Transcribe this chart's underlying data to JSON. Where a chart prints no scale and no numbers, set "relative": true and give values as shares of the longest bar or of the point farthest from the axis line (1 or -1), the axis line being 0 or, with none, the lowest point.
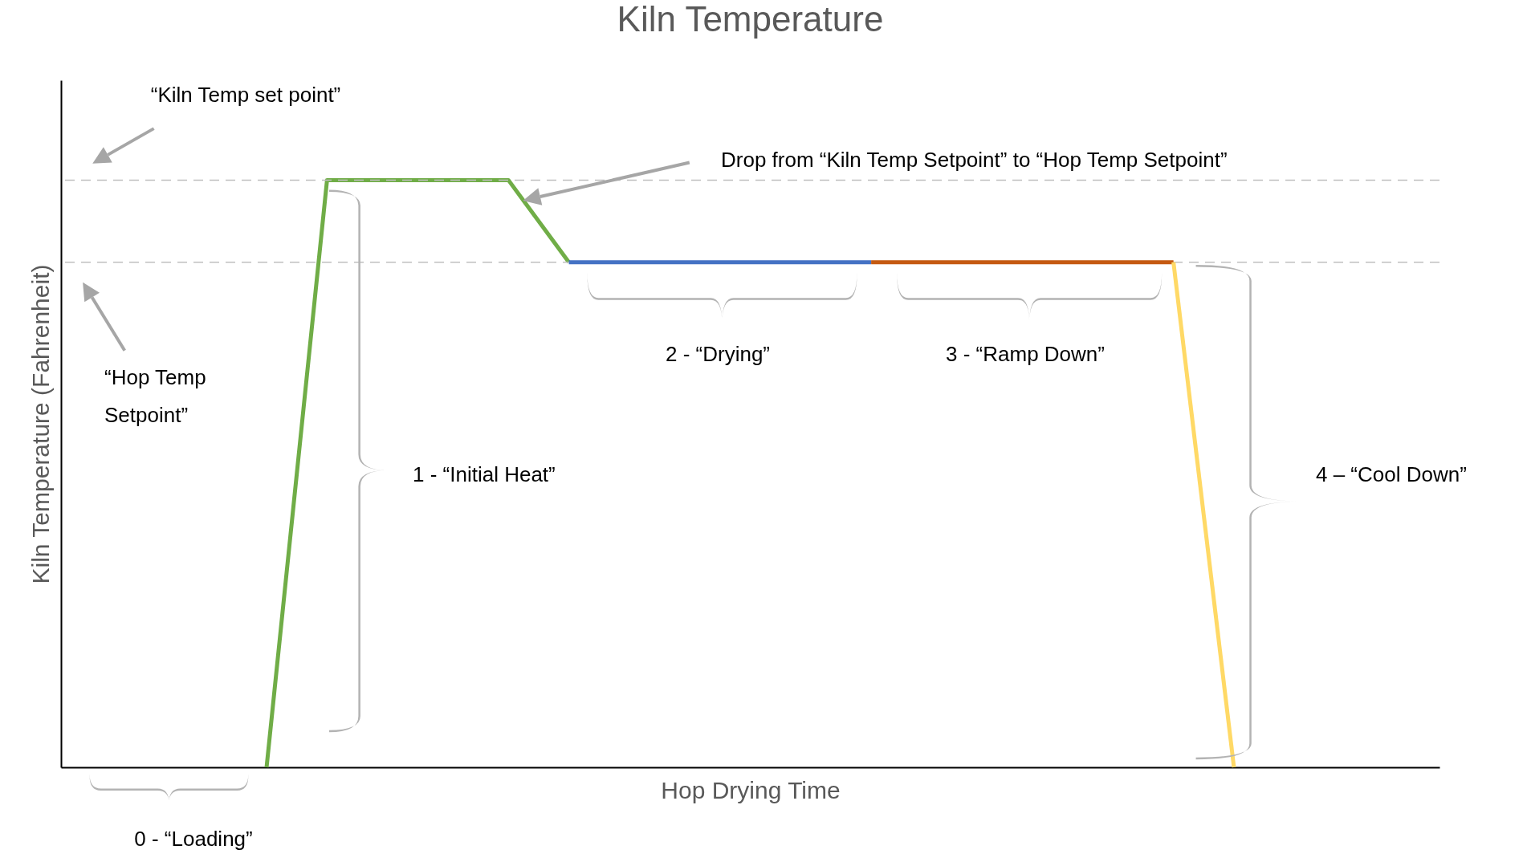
{
  "chart_data": {
    "type": "line",
    "title": "Kiln Temperature",
    "xlabel": "Hop Drying Time",
    "ylabel": "Kiln Temperature (Fahrenheit)",
    "relative": true,
    "categories": [
      null,
      null,
      null,
      null,
      null,
      null,
      null,
      null,
      null,
      null,
      null,
      null,
      null,
      null,
      null,
      null,
      null,
      null,
      null,
      null,
      null,
      null,
      null
    ],
    "series": [
      {
        "color": "#70ad47",
        "values": [
          null,
          null,
          null,
          0,
          1,
          1,
          1,
          1,
          0.86,
          null,
          null,
          null,
          null,
          null,
          null,
          null,
          null,
          null,
          null,
          null,
          null,
          null,
          null
        ]
      },
      {
        "color": "#4472c4",
        "values": [
          null,
          null,
          null,
          null,
          null,
          null,
          null,
          null,
          0.86,
          0.86,
          0.86,
          0.86,
          0.86,
          0.86,
          null,
          null,
          null,
          null,
          null,
          null,
          null,
          null,
          null
        ]
      },
      {
        "color": "#c55a11",
        "values": [
          null,
          null,
          null,
          null,
          null,
          null,
          null,
          null,
          null,
          null,
          null,
          null,
          null,
          0.86,
          0.86,
          0.86,
          0.86,
          0.86,
          0.86,
          null,
          null,
          null,
          null
        ]
      },
      {
        "color": "#ffd966",
        "values": [
          null,
          null,
          null,
          null,
          null,
          null,
          null,
          null,
          null,
          null,
          null,
          null,
          null,
          null,
          null,
          null,
          null,
          null,
          0.86,
          0,
          null,
          null,
          null
        ]
      }
    ],
    "ref_lines": [
      {
        "axis": "y",
        "value": 1,
        "color": "#bfbfbf",
        "line_style": "dashed"
      },
      {
        "axis": "y",
        "value": 0.86,
        "color": "#bfbfbf",
        "line_style": "dashed"
      }
    ],
    "annotations": [
      "“Kiln Temp set point”",
      "“Hop Temp Setpoint”",
      "Drop from “Kiln Temp Setpoint” to “Hop Temp Setpoint”",
      "0 - “Loading”",
      "1 - “Initial Heat”",
      "2 - “Drying”",
      "3 - “Ramp Down”",
      "4 – “Cool Down”"
    ]
  }
}
